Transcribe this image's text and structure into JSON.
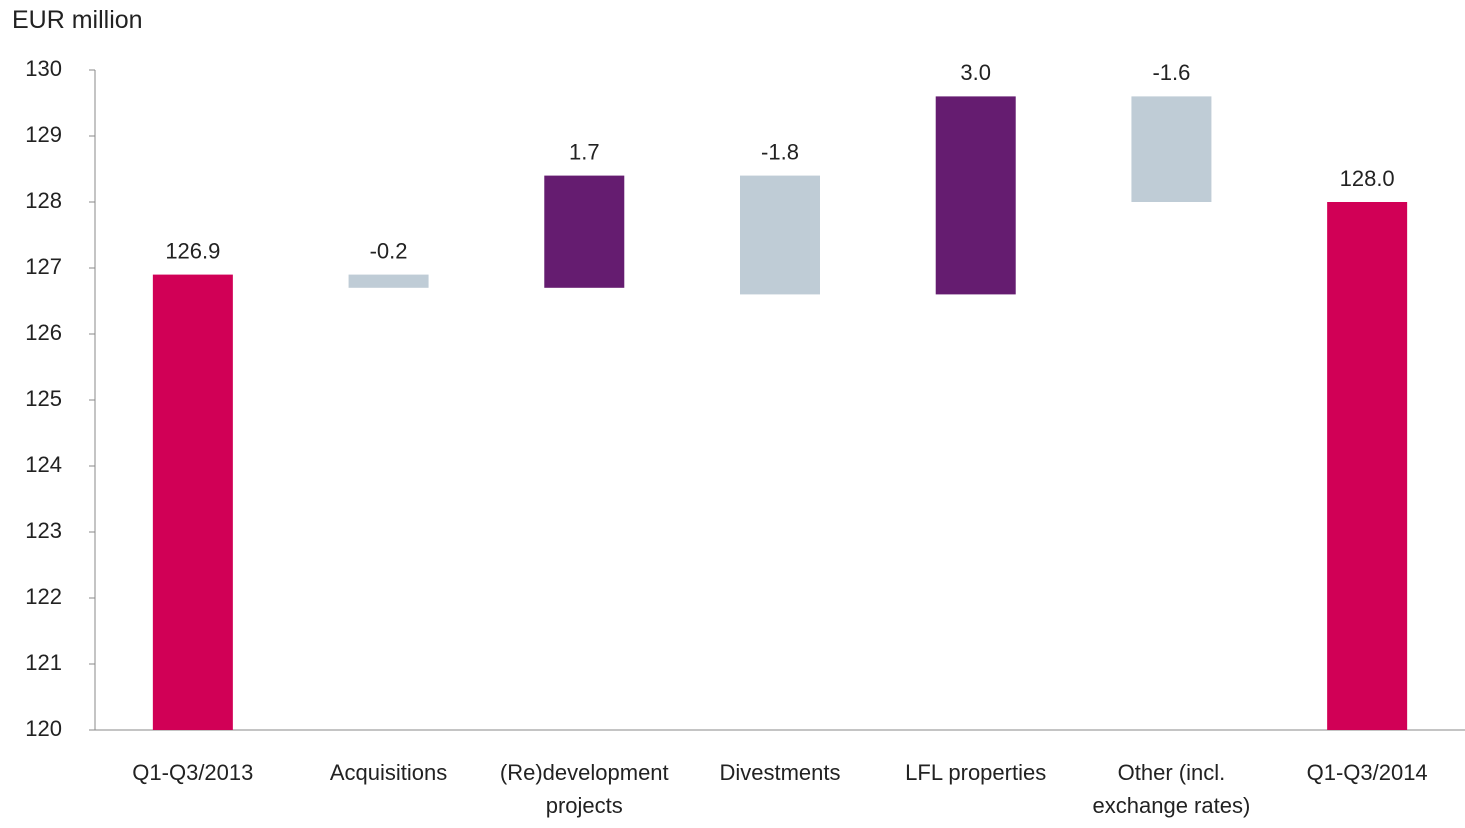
{
  "chart_data": {
    "type": "waterfall",
    "y_label": "EUR million",
    "categories": [
      "Q1-Q3/2013",
      "Acquisitions",
      "(Re)development projects",
      "Divestments",
      "LFL properties",
      "Other (incl. exchange rates)",
      "Q1-Q3/2014"
    ],
    "values": [
      126.9,
      -0.2,
      1.7,
      -1.8,
      3.0,
      -1.6,
      128.0
    ],
    "value_labels": [
      "126.9",
      "-0.2",
      "1.7",
      "-1.8",
      "3.0",
      "-1.6",
      "128.0"
    ],
    "total_color": "#d10056",
    "increase_color": "#651c70",
    "decrease_color": "#bfccd6",
    "ylim": [
      120,
      130
    ],
    "yticks": [
      120,
      121,
      122,
      123,
      124,
      125,
      126,
      127,
      128,
      129,
      130
    ]
  }
}
